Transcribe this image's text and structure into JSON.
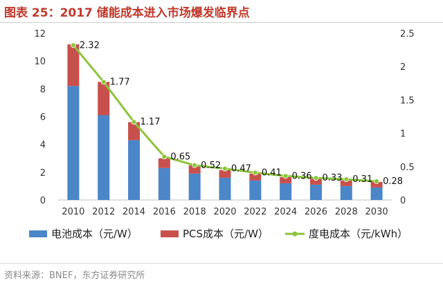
{
  "title": "图表 25：2017 储能成本进入市场爆发临界点",
  "source": "资料来源：BNEF，东方证券研究所",
  "colors": {
    "battery": "#4a86c8",
    "pcs": "#c8504c",
    "line": "#8cc43c",
    "title": "#c0392b"
  },
  "chart_data": {
    "type": "bar",
    "stacked": true,
    "categories": [
      "2010",
      "2012",
      "2014",
      "2016",
      "2018",
      "2020",
      "2022",
      "2024",
      "2026",
      "2028",
      "2030"
    ],
    "series": [
      {
        "name": "电池成本（元/W）",
        "kind": "bar",
        "axis": "left",
        "values": [
          8.2,
          6.1,
          4.3,
          2.3,
          1.9,
          1.6,
          1.4,
          1.2,
          1.1,
          1.0,
          0.9
        ]
      },
      {
        "name": "PCS成本（元/W）",
        "kind": "bar",
        "axis": "left",
        "values": [
          3.0,
          2.4,
          1.3,
          0.7,
          0.6,
          0.55,
          0.5,
          0.45,
          0.45,
          0.4,
          0.4
        ]
      },
      {
        "name": "度电成本（元/kWh）",
        "kind": "line",
        "axis": "right",
        "values": [
          2.32,
          1.77,
          1.17,
          0.65,
          0.52,
          0.47,
          0.41,
          0.36,
          0.33,
          0.31,
          0.28
        ],
        "labels": [
          "2.32",
          "1.77",
          "1.17",
          "0.65",
          "0.52",
          "0.47",
          "0.41",
          "0.36",
          "0.33",
          "0.31",
          "0.28"
        ]
      }
    ],
    "ylim_left": [
      0,
      12
    ],
    "yticks_left": [
      "0",
      "2",
      "4",
      "6",
      "8",
      "10",
      "12"
    ],
    "ylim_right": [
      0,
      2.5
    ],
    "yticks_right": [
      "0",
      "0.5",
      "1",
      "1.5",
      "2",
      "2.5"
    ],
    "grid": false,
    "legend_position": "bottom"
  }
}
